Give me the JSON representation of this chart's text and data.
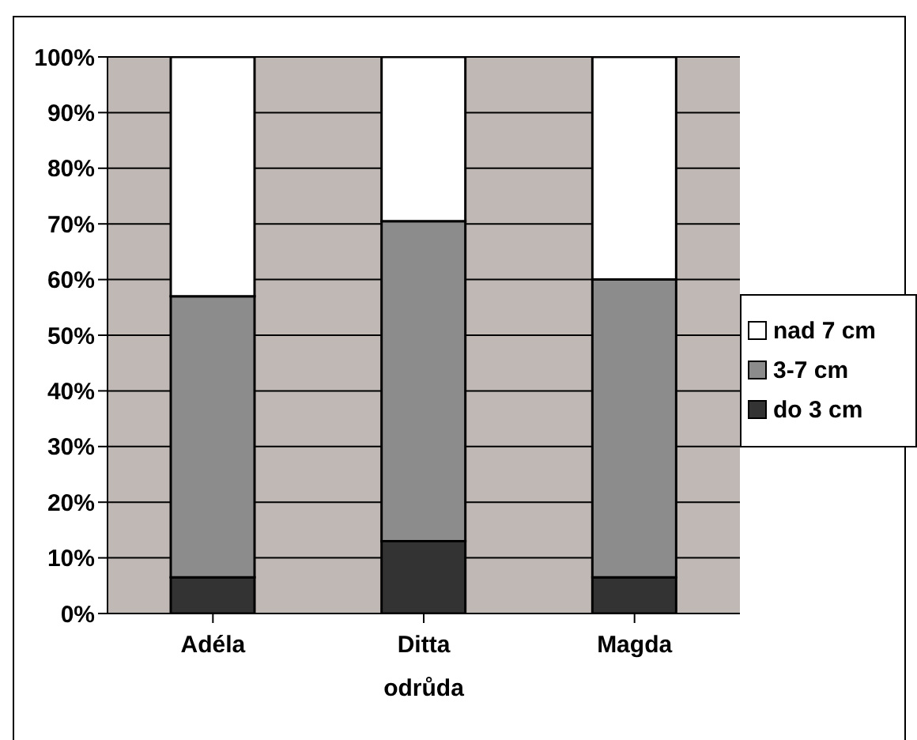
{
  "chart_data": {
    "type": "bar",
    "stacked": true,
    "xlabel": "odrůda",
    "categories": [
      "Adéla",
      "Ditta",
      "Magda"
    ],
    "series": [
      {
        "name": "do 3 cm",
        "color": "#333333",
        "values": [
          6.5,
          13,
          6.5
        ]
      },
      {
        "name": "3-7 cm",
        "color": "#8c8c8c",
        "values": [
          50.5,
          57.5,
          53.5
        ]
      },
      {
        "name": "nad 7 cm",
        "color": "#ffffff",
        "values": [
          43,
          29.5,
          40
        ]
      }
    ],
    "ylim": [
      0,
      100
    ],
    "yticks": [
      {
        "value": 0,
        "label": "0%"
      },
      {
        "value": 10,
        "label": "10%"
      },
      {
        "value": 20,
        "label": "20%"
      },
      {
        "value": 30,
        "label": "30%"
      },
      {
        "value": 40,
        "label": "40%"
      },
      {
        "value": 50,
        "label": "50%"
      },
      {
        "value": 60,
        "label": "60%"
      },
      {
        "value": 70,
        "label": "70%"
      },
      {
        "value": 80,
        "label": "80%"
      },
      {
        "value": 90,
        "label": "90%"
      },
      {
        "value": 100,
        "label": "100%"
      }
    ],
    "grid": "y",
    "legend": "right"
  }
}
